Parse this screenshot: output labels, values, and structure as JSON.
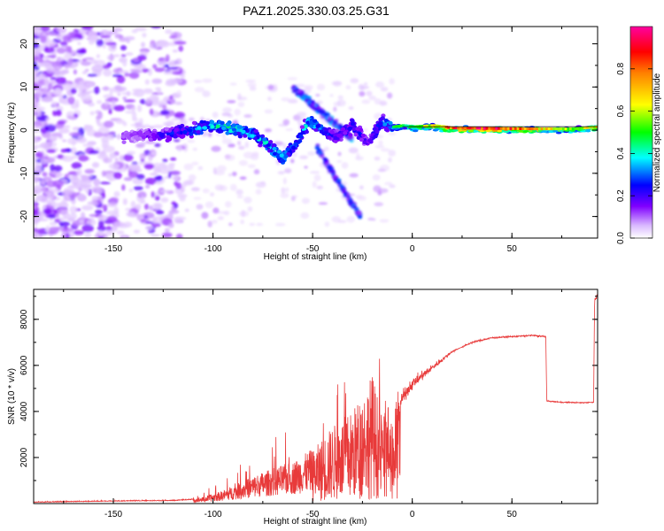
{
  "figure_title": "PAZ1.2025.330.03.25.G31",
  "chart_data": [
    {
      "type": "heatmap",
      "title": "PAZ1.2025.330.03.25.G31",
      "xlabel": "Height of straight line (km)",
      "ylabel": "Frequency (Hz)",
      "xlim": [
        -190,
        93
      ],
      "ylim": [
        -25,
        24
      ],
      "xticks": [
        -150,
        -100,
        -50,
        0,
        50
      ],
      "yticks": [
        -20,
        -10,
        0,
        10,
        20
      ],
      "grid": false,
      "description_of_values": "Normalized spectral amplitude vs height and frequency; strong near 0 Hz for heights above -10 km, scattered weak energy below -120 km.",
      "ridge": {
        "x": [
          -140,
          -125,
          -110,
          -100,
          -90,
          -80,
          -72,
          -65,
          -58,
          -52,
          -45,
          -38,
          -30,
          -22,
          -15,
          -10,
          -5,
          0,
          10,
          20,
          40,
          60,
          80,
          93
        ],
        "freq": [
          -1.5,
          -1.0,
          0.0,
          1.0,
          0.5,
          -1.0,
          -3.5,
          -6.5,
          -3.0,
          2.0,
          0.0,
          -1.5,
          1.0,
          -3.0,
          2.0,
          0.5,
          0.8,
          0.5,
          0.8,
          0.2,
          0.1,
          0.0,
          0.0,
          0.5
        ],
        "amplitude": [
          0.15,
          0.25,
          0.35,
          0.45,
          0.5,
          0.4,
          0.45,
          0.45,
          0.3,
          0.45,
          0.35,
          0.25,
          0.3,
          0.25,
          0.35,
          0.45,
          0.45,
          0.55,
          0.6,
          0.85,
          0.9,
          0.7,
          0.55,
          0.65
        ]
      },
      "colorbar": {
        "label": "Normalized spectral amplitude",
        "range": [
          0,
          1
        ],
        "ticks": [
          "0.0",
          "0.2",
          "0.4",
          "0.6",
          "0.8"
        ],
        "colormap": [
          "#ffffff",
          "#8000ff",
          "#0000ff",
          "#00ffff",
          "#00ff00",
          "#ffff00",
          "#ff0000",
          "#ff00a0"
        ]
      }
    },
    {
      "type": "line",
      "xlabel": "Height of straight line (km)",
      "ylabel": "SNR (10 * v/v)",
      "xlim": [
        -190,
        93
      ],
      "ylim": [
        0,
        9300
      ],
      "xticks": [
        -150,
        -100,
        -50,
        0,
        50
      ],
      "yticks": [
        2000,
        4000,
        6000,
        8000
      ],
      "grid": false,
      "series": [
        {
          "name": "SNR",
          "color": "#e83a3a",
          "x": [
            -190,
            -150,
            -120,
            -105,
            -95,
            -85,
            -78,
            -70,
            -60,
            -50,
            -40,
            -30,
            -25,
            -20,
            -15,
            -10,
            -5,
            0,
            10,
            20,
            30,
            40,
            50,
            60,
            67,
            67.5,
            75,
            85,
            91,
            91.5,
            93
          ],
          "y": [
            50,
            100,
            120,
            200,
            400,
            700,
            900,
            1100,
            1300,
            1700,
            2500,
            3000,
            3600,
            4200,
            2800,
            3300,
            4600,
            5200,
            5900,
            6600,
            7000,
            7200,
            7250,
            7300,
            7250,
            4450,
            4400,
            4380,
            4400,
            8900,
            9000
          ]
        }
      ]
    }
  ]
}
